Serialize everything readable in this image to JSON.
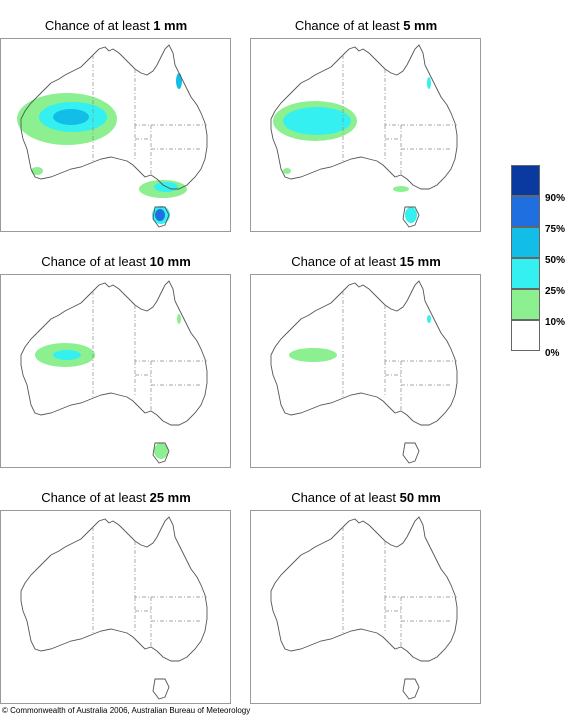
{
  "panels": [
    {
      "title_prefix": "Chance of at least ",
      "amount": "1 mm"
    },
    {
      "title_prefix": "Chance of at least ",
      "amount": "5 mm"
    },
    {
      "title_prefix": "Chance of at least ",
      "amount": "10 mm"
    },
    {
      "title_prefix": "Chance of at least ",
      "amount": "15 mm"
    },
    {
      "title_prefix": "Chance of at least ",
      "amount": "25 mm"
    },
    {
      "title_prefix": "Chance of at least ",
      "amount": "50 mm"
    }
  ],
  "legend": {
    "labels": [
      "90%",
      "75%",
      "50%",
      "25%",
      "10%",
      "0%"
    ],
    "colors": [
      "#0a3aa0",
      "#1f6fe0",
      "#12bde8",
      "#34f0f0",
      "#8cf090",
      "#ffffff"
    ]
  },
  "copyright": "© Commonwealth of Australia 2006, Australian Bureau of Meteorology"
}
